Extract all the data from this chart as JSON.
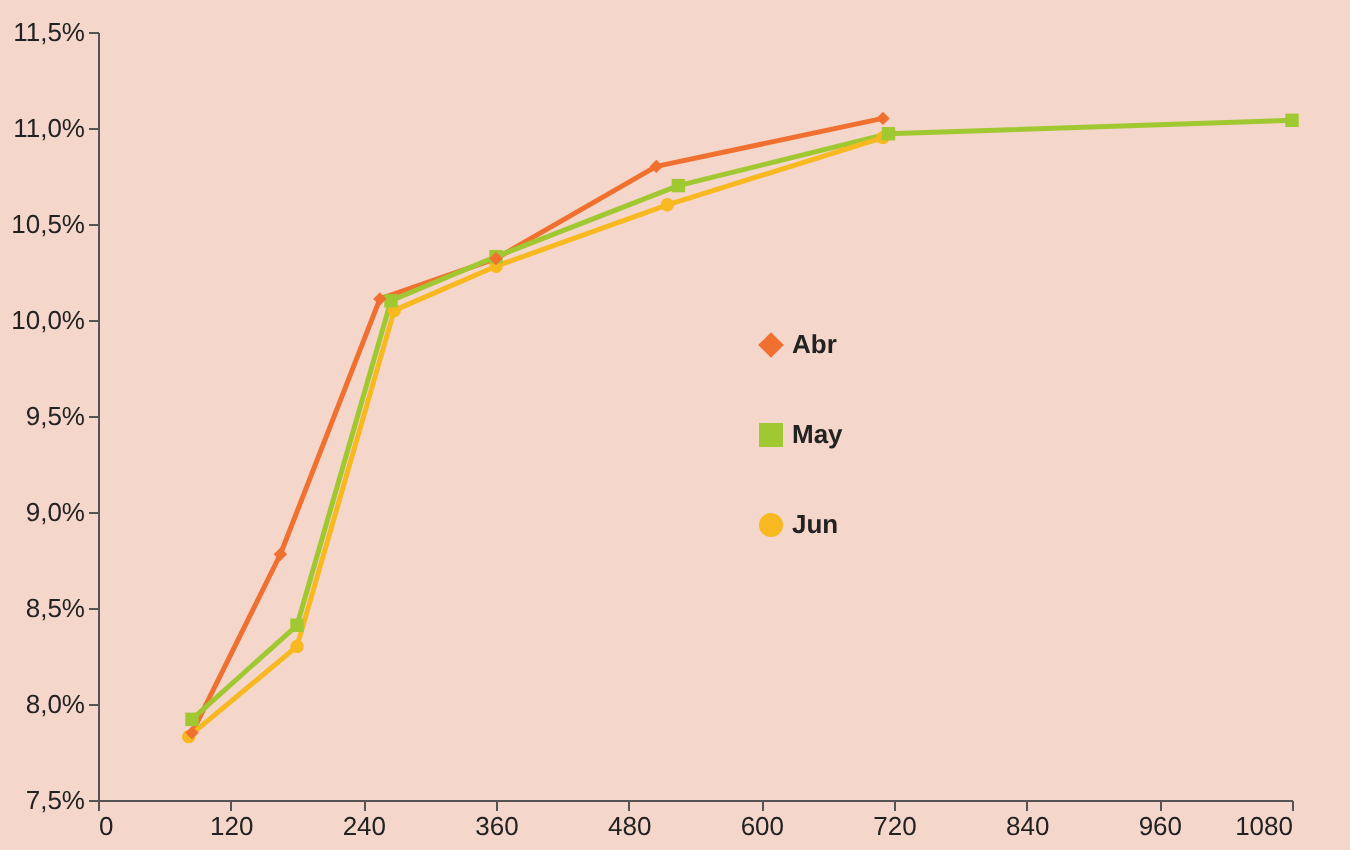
{
  "chart_data": {
    "type": "line",
    "xlim": [
      0,
      1080
    ],
    "xticks": [
      0,
      120,
      240,
      360,
      480,
      600,
      720,
      840,
      960,
      1080
    ],
    "ylim": [
      7.5,
      11.5
    ],
    "yticks": [
      {
        "value": 7.5,
        "label": "7,5%"
      },
      {
        "value": 8.0,
        "label": "8,0%"
      },
      {
        "value": 8.5,
        "label": "8,5%"
      },
      {
        "value": 9.0,
        "label": "9,0%"
      },
      {
        "value": 9.5,
        "label": "9,5%"
      },
      {
        "value": 10.0,
        "label": "10,0%"
      },
      {
        "value": 10.5,
        "label": "10,5%"
      },
      {
        "value": 11.0,
        "label": "11,0%"
      },
      {
        "value": 11.5,
        "label": "11,5%"
      }
    ],
    "grid": false,
    "legend": "right",
    "line_style": "solid",
    "series": [
      {
        "name": "Abr",
        "color": "#f07030",
        "marker": "diamond",
        "x": [
          85,
          165,
          255,
          360,
          505,
          710
        ],
        "values": [
          7.85,
          8.78,
          10.11,
          10.32,
          10.8,
          11.05
        ]
      },
      {
        "name": "May",
        "color": "#a0c830",
        "marker": "square",
        "x": [
          85,
          180,
          265,
          360,
          525,
          715,
          1080
        ],
        "values": [
          7.92,
          8.41,
          10.1,
          10.33,
          10.7,
          10.97,
          11.04
        ]
      },
      {
        "name": "Jun",
        "color": "#f8b820",
        "marker": "circle",
        "x": [
          82,
          180,
          268,
          360,
          515,
          710
        ],
        "values": [
          7.83,
          8.3,
          10.05,
          10.28,
          10.6,
          10.95
        ]
      }
    ]
  }
}
